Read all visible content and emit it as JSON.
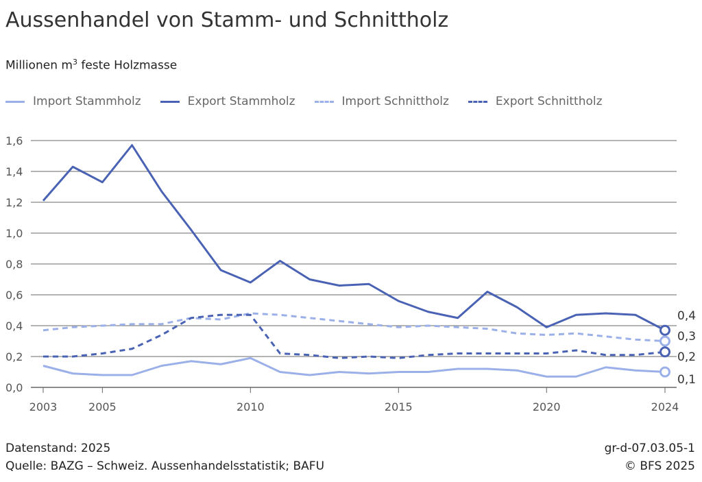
{
  "title": "Aussenhandel von Stamm- und Schnittholz",
  "subtitle_prefix": "Millionen m",
  "subtitle_sup": "3",
  "subtitle_suffix": " feste Holzmasse",
  "footer": {
    "datenstand": "Datenstand: 2025",
    "quelle": "Quelle: BAZG – Schweiz. Aussenhandelsstatistik; BAFU",
    "code": "gr-d-07.03.05-1",
    "copyright": "© BFS 2025"
  },
  "chart_data": {
    "type": "line",
    "title": "Aussenhandel von Stamm- und Schnittholz",
    "ylabel": "Millionen m³ feste Holzmasse",
    "ylim": [
      0,
      1.6
    ],
    "yticks": [
      "0,0",
      "0,2",
      "0,4",
      "0,6",
      "0,8",
      "1,0",
      "1,2",
      "1,4",
      "1,6"
    ],
    "xticks": [
      "2003",
      "2005",
      "2010",
      "2015",
      "2020",
      "2024"
    ],
    "grid": true,
    "legend": "top",
    "x": [
      2003,
      2004,
      2005,
      2006,
      2007,
      2008,
      2009,
      2010,
      2011,
      2012,
      2013,
      2014,
      2015,
      2016,
      2017,
      2018,
      2019,
      2020,
      2021,
      2022,
      2023,
      2024
    ],
    "series": [
      {
        "name": "Import Stammholz",
        "color": "#9bb0e8",
        "dash": false,
        "end_label": "0,1",
        "values": [
          0.14,
          0.09,
          0.08,
          0.08,
          0.14,
          0.17,
          0.15,
          0.19,
          0.1,
          0.08,
          0.1,
          0.09,
          0.1,
          0.1,
          0.12,
          0.12,
          0.11,
          0.07,
          0.07,
          0.13,
          0.11,
          0.1
        ]
      },
      {
        "name": "Export Stammholz",
        "color": "#4a62b4",
        "dash": false,
        "end_label": "0,4",
        "values": [
          1.21,
          1.43,
          1.33,
          1.57,
          1.27,
          1.02,
          0.76,
          0.68,
          0.82,
          0.7,
          0.66,
          0.67,
          0.56,
          0.49,
          0.45,
          0.62,
          0.52,
          0.39,
          0.47,
          0.48,
          0.47,
          0.37
        ]
      },
      {
        "name": "Import Schnittholz",
        "color": "#9bb0e8",
        "dash": true,
        "end_label": "0,3",
        "values": [
          0.37,
          0.39,
          0.4,
          0.41,
          0.41,
          0.45,
          0.44,
          0.48,
          0.47,
          0.45,
          0.43,
          0.41,
          0.39,
          0.4,
          0.39,
          0.38,
          0.35,
          0.34,
          0.35,
          0.33,
          0.31,
          0.3
        ]
      },
      {
        "name": "Export Schnittholz",
        "color": "#4a62b4",
        "dash": true,
        "end_label": "0,2",
        "values": [
          0.2,
          0.2,
          0.22,
          0.25,
          0.34,
          0.45,
          0.47,
          0.47,
          0.22,
          0.21,
          0.19,
          0.2,
          0.19,
          0.21,
          0.22,
          0.22,
          0.22,
          0.22,
          0.24,
          0.21,
          0.21,
          0.23
        ]
      }
    ]
  }
}
